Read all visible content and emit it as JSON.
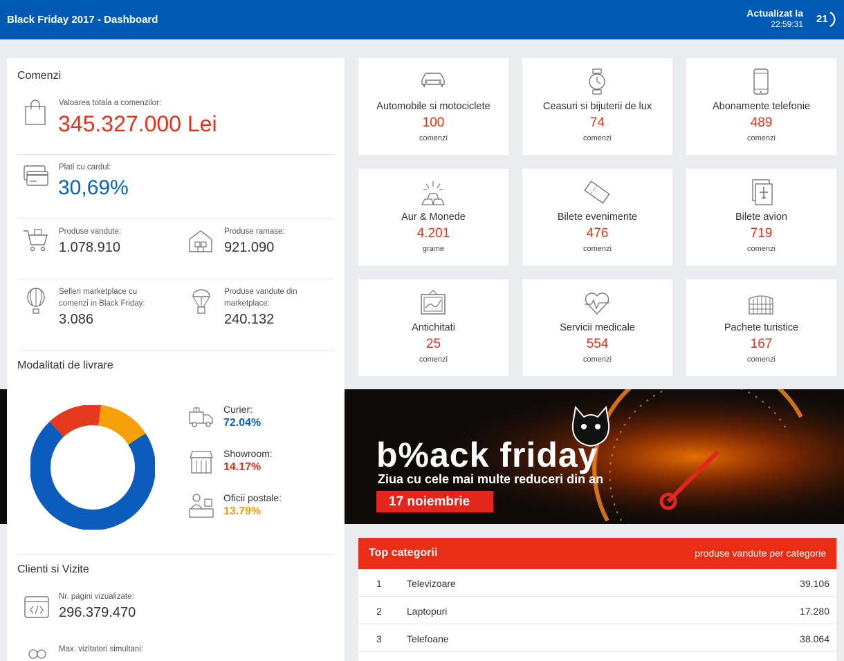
{
  "header": {
    "title": "Black Friday 2017 - Dashboard",
    "updated_label": "Actualizat la",
    "updated_time": "22:59:31",
    "refresh_count": "21"
  },
  "comenzi": {
    "title": "Comenzi",
    "total_label": "Valoarea totala a comenzilor:",
    "total_value": "345.327.000 Lei",
    "card_label": "Plati cu cardul:",
    "card_value": "30,69%",
    "sold_label": "Produse vandute:",
    "sold_value": "1.078.910",
    "remaining_label": "Produse ramase:",
    "remaining_value": "921.090",
    "sellers_label_1": "Selleri marketplace cu",
    "sellers_label_2": "comenzi in Black Friday:",
    "sellers_value": "3.086",
    "mp_label_1": "Produse vandute din",
    "mp_label_2": "marketplace:",
    "mp_value": "240.132"
  },
  "livrare": {
    "title": "Modalitati de livrare",
    "items": [
      {
        "name": "Curier:",
        "percent": "72.04%",
        "value": 72.04,
        "color": "#0b5cbd",
        "icon": "truck-icon"
      },
      {
        "name": "Showroom:",
        "percent": "14.17%",
        "value": 14.17,
        "color": "#e43a1d",
        "icon": "storefront-icon"
      },
      {
        "name": "Oficii postale:",
        "percent": "13.79%",
        "value": 13.79,
        "color": "#f8a00a",
        "icon": "post-office-icon"
      }
    ]
  },
  "clienti": {
    "title": "Clienti si Vizite",
    "pages_label": "Nr. pagini vizualizate:",
    "pages_value": "296.379.470",
    "visitors_label": "Max. vizitatori simultani:"
  },
  "categories": [
    {
      "name": "Automobile si motociclete",
      "value": "100",
      "unit": "comenzi",
      "icon": "car-icon"
    },
    {
      "name": "Ceasuri si bijuterii de lux",
      "value": "74",
      "unit": "comenzi",
      "icon": "watch-icon"
    },
    {
      "name": "Abonamente telefonie",
      "value": "489",
      "unit": "comenzi",
      "icon": "phone-icon"
    },
    {
      "name": "Aur & Monede",
      "value": "4.201",
      "unit": "grame",
      "icon": "gold-bars-icon"
    },
    {
      "name": "Bilete evenimente",
      "value": "476",
      "unit": "comenzi",
      "icon": "ticket-icon"
    },
    {
      "name": "Bilete avion",
      "value": "719",
      "unit": "comenzi",
      "icon": "plane-ticket-icon"
    },
    {
      "name": "Antichitati",
      "value": "25",
      "unit": "comenzi",
      "icon": "painting-icon"
    },
    {
      "name": "Servicii medicale",
      "value": "554",
      "unit": "comenzi",
      "icon": "heartbeat-icon"
    },
    {
      "name": "Pachete turistice",
      "value": "167",
      "unit": "comenzi",
      "icon": "colosseum-icon"
    }
  ],
  "banner": {
    "brand": "b%ack friday",
    "subtitle": "Ziua cu cele mai multe reduceri din an",
    "date": "17 noiembrie"
  },
  "top_categorii": {
    "title": "Top categorii",
    "subtitle": "produse vandute per categorie",
    "rows": [
      {
        "rank": "1",
        "name": "Televizoare",
        "value": "39.106"
      },
      {
        "rank": "2",
        "name": "Laptopuri",
        "value": "17.280"
      },
      {
        "rank": "3",
        "name": "Telefoane",
        "value": "38.064"
      }
    ]
  }
}
